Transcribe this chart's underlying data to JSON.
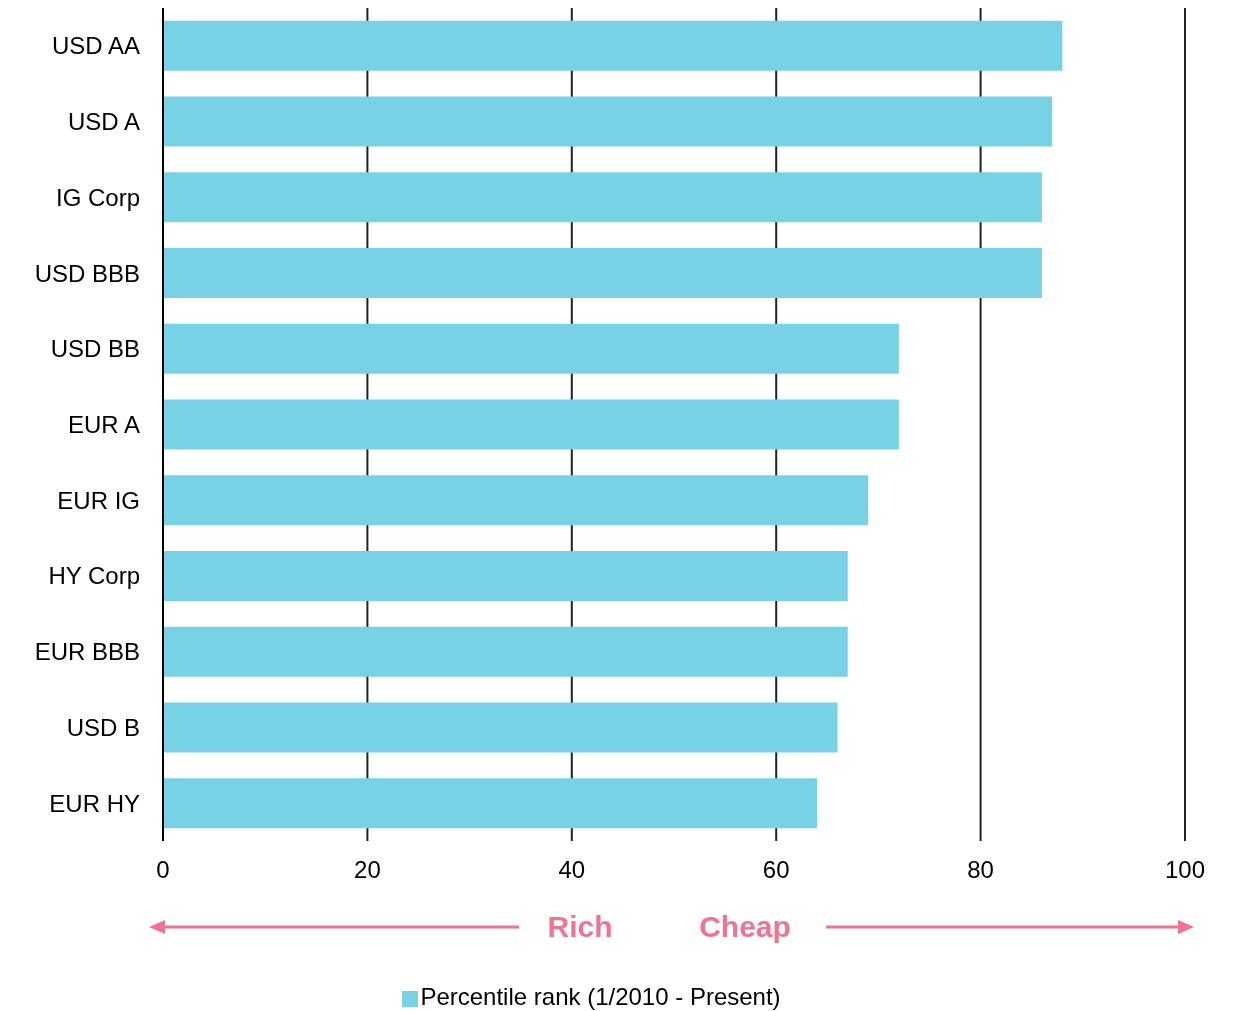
{
  "chart_data": {
    "type": "bar",
    "orientation": "horizontal",
    "categories": [
      "USD AA",
      "USD A",
      "IG Corp",
      "USD BBB",
      "USD BB",
      "EUR A",
      "EUR IG",
      "HY Corp",
      "EUR BBB",
      "USD B",
      "EUR HY"
    ],
    "series": [
      {
        "name": "Percentile rank (1/2010 - Present)",
        "color": "#78d2e5",
        "values": [
          88,
          87,
          86,
          86,
          72,
          72,
          69,
          67,
          67,
          66,
          64
        ]
      }
    ],
    "xlim": [
      0,
      100
    ],
    "xticks": [
      0,
      20,
      40,
      60,
      80,
      100
    ],
    "grid": "x",
    "legend": "bottom",
    "annotations": [
      "Rich",
      "Cheap"
    ]
  }
}
